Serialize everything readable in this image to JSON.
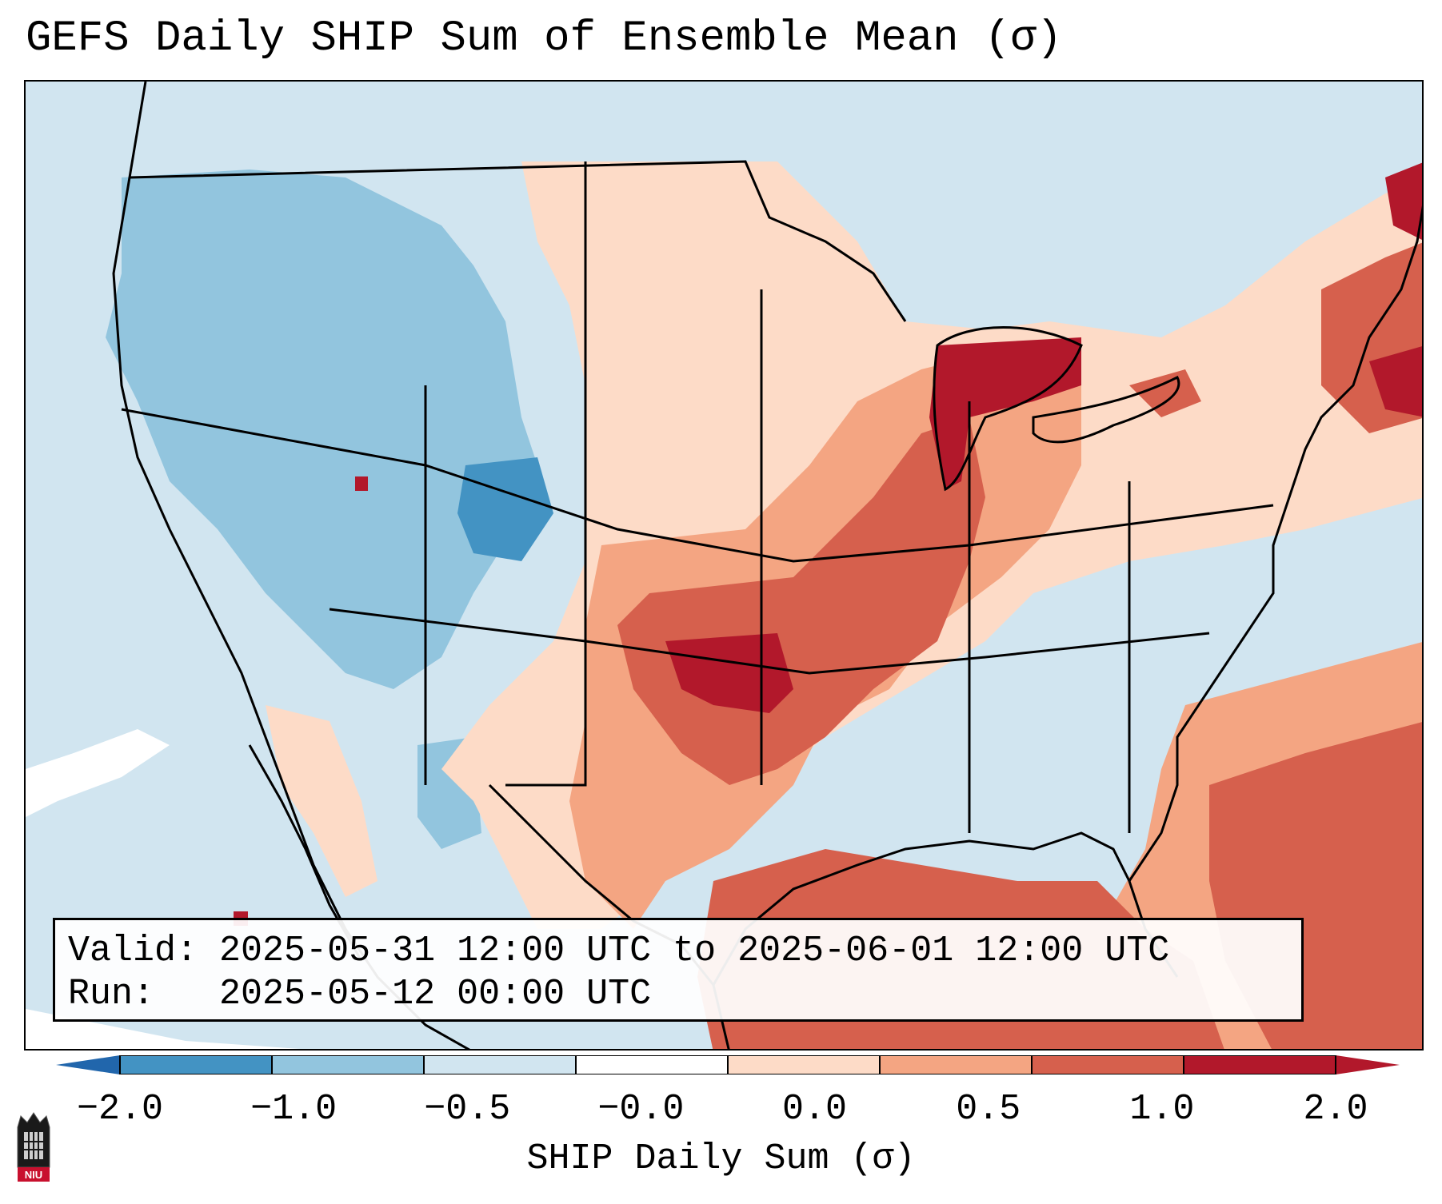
{
  "title": "GEFS Daily SHIP Sum of Ensemble Mean (σ)",
  "info": {
    "valid_label": "Valid:",
    "valid_value": "2025-05-31 12:00 UTC to 2025-06-01 12:00 UTC",
    "run_label": "Run:",
    "run_value": "2025-05-12 00:00 UTC"
  },
  "colorbar": {
    "title": "SHIP Daily Sum (σ)",
    "ticks": [
      "−2.0",
      "−1.0",
      "−0.5",
      "−0.0",
      "0.0",
      "0.5",
      "1.0",
      "2.0"
    ],
    "colors": [
      "#4393c3",
      "#92c5de",
      "#d1e5f0",
      "#ffffff",
      "#fddbc7",
      "#f4a582",
      "#d6604d",
      "#b2182b"
    ],
    "under_color": "#2166ac",
    "over_color": "#b2182b"
  },
  "map": {
    "background_color": "#d1e5f0",
    "regions": [
      {
        "name": "northern-plains-light-positive",
        "level": "0.0 to 0.5"
      },
      {
        "name": "mississippi-valley-moderate-positive",
        "level": "1.0 to 2.0"
      },
      {
        "name": "oklahoma-strong-positive",
        "level": "above 2.0"
      },
      {
        "name": "lake-michigan-strong-positive",
        "level": "above 2.0"
      },
      {
        "name": "gulf-of-mexico-positive",
        "level": "1.0 to 2.0"
      },
      {
        "name": "western-atlantic-positive",
        "level": "1.0 to 2.0"
      },
      {
        "name": "rockies-negative",
        "level": "-1.0 to -0.5"
      },
      {
        "name": "colorado-strong-negative",
        "level": "-2.0 to -1.0"
      }
    ]
  },
  "logo": {
    "text": "NIU"
  }
}
